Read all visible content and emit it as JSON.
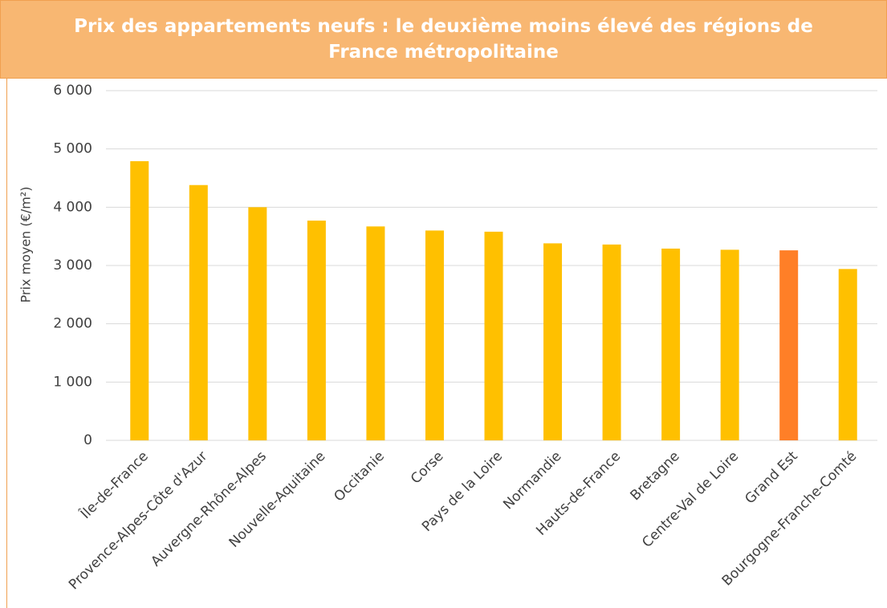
{
  "chart_data": {
    "type": "bar",
    "title": "Prix des appartements neufs  : le deuxième moins élevé des régions de France métropolitaine",
    "y_label": "Prix moyen (€/m²)",
    "categories": [
      "Île-de-France",
      "Provence-Alpes-Côte d'Azur",
      "Auvergne-Rhône-Alpes",
      "Nouvelle-Aquitaine",
      "Occitanie",
      "Corse",
      "Pays de la Loire",
      "Normandie",
      "Hauts-de-France",
      "Bretagne",
      "Centre-Val de Loire",
      "Grand Est",
      "Bourgogne-Franche-Comté"
    ],
    "values": [
      4790,
      4380,
      4000,
      3770,
      3670,
      3600,
      3580,
      3380,
      3360,
      3290,
      3270,
      3260,
      2940
    ],
    "colors": [
      "#ffc000",
      "#ffc000",
      "#ffc000",
      "#ffc000",
      "#ffc000",
      "#ffc000",
      "#ffc000",
      "#ffc000",
      "#ffc000",
      "#ffc000",
      "#ffc000",
      "#ff7f27",
      "#ffc000"
    ],
    "ylim": [
      0,
      6000
    ],
    "yticks": [
      0,
      {
        "value": 1000,
        "label": "1 000"
      },
      {
        "value": 2000,
        "label": "2 000"
      },
      {
        "value": 3000,
        "label": "3 000"
      },
      {
        "value": 4000,
        "label": "4 000"
      },
      {
        "value": 5000,
        "label": "5 000"
      },
      {
        "value": 6000,
        "label": "6 000"
      }
    ],
    "grid": true
  }
}
